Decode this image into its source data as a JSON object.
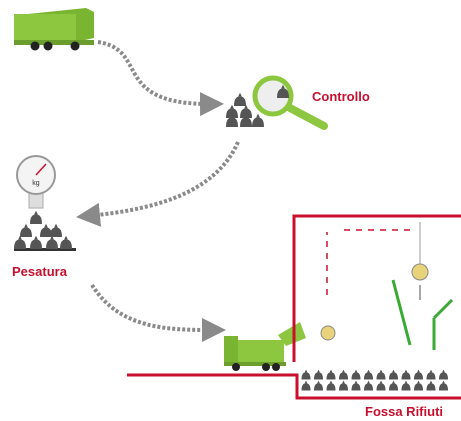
{
  "labels": {
    "control": "Controllo",
    "scale_unit": "kg",
    "weighing": "Pesatura",
    "pit": "Fossa Rifiuti"
  }
}
